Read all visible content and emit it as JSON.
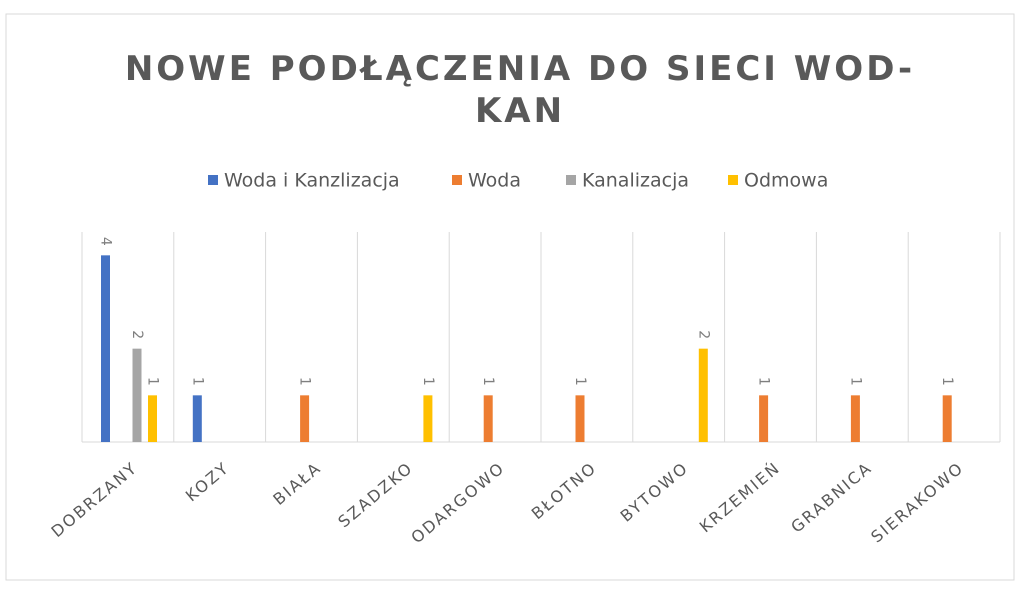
{
  "chart_data": {
    "type": "bar",
    "title": "NOWE PODŁĄCZENIA  DO SIECI WOD-KAN",
    "categories": [
      "DOBRZANY",
      "KOZY",
      "BIAŁA",
      "SZADZKO",
      "ODARGOWO",
      "BŁOTNO",
      "BYTOWO",
      "KRZEMIEŃ",
      "GRABNICA",
      "SIERAKOWO"
    ],
    "series": [
      {
        "name": "Woda i Kanzlizacja",
        "color": "#4472c4",
        "values": [
          4,
          1,
          null,
          null,
          null,
          null,
          null,
          null,
          null,
          null
        ]
      },
      {
        "name": "Woda",
        "color": "#ed7d31",
        "values": [
          null,
          null,
          1,
          null,
          1,
          1,
          null,
          1,
          1,
          1
        ]
      },
      {
        "name": "Kanalizacja",
        "color": "#a5a5a5",
        "values": [
          2,
          null,
          null,
          null,
          null,
          null,
          null,
          null,
          null,
          null
        ]
      },
      {
        "name": "Odmowa",
        "color": "#ffc000",
        "values": [
          1,
          null,
          null,
          1,
          null,
          null,
          2,
          null,
          null,
          null
        ]
      }
    ],
    "ylim": [
      0,
      4.5
    ],
    "grid": true,
    "legend": "top"
  }
}
